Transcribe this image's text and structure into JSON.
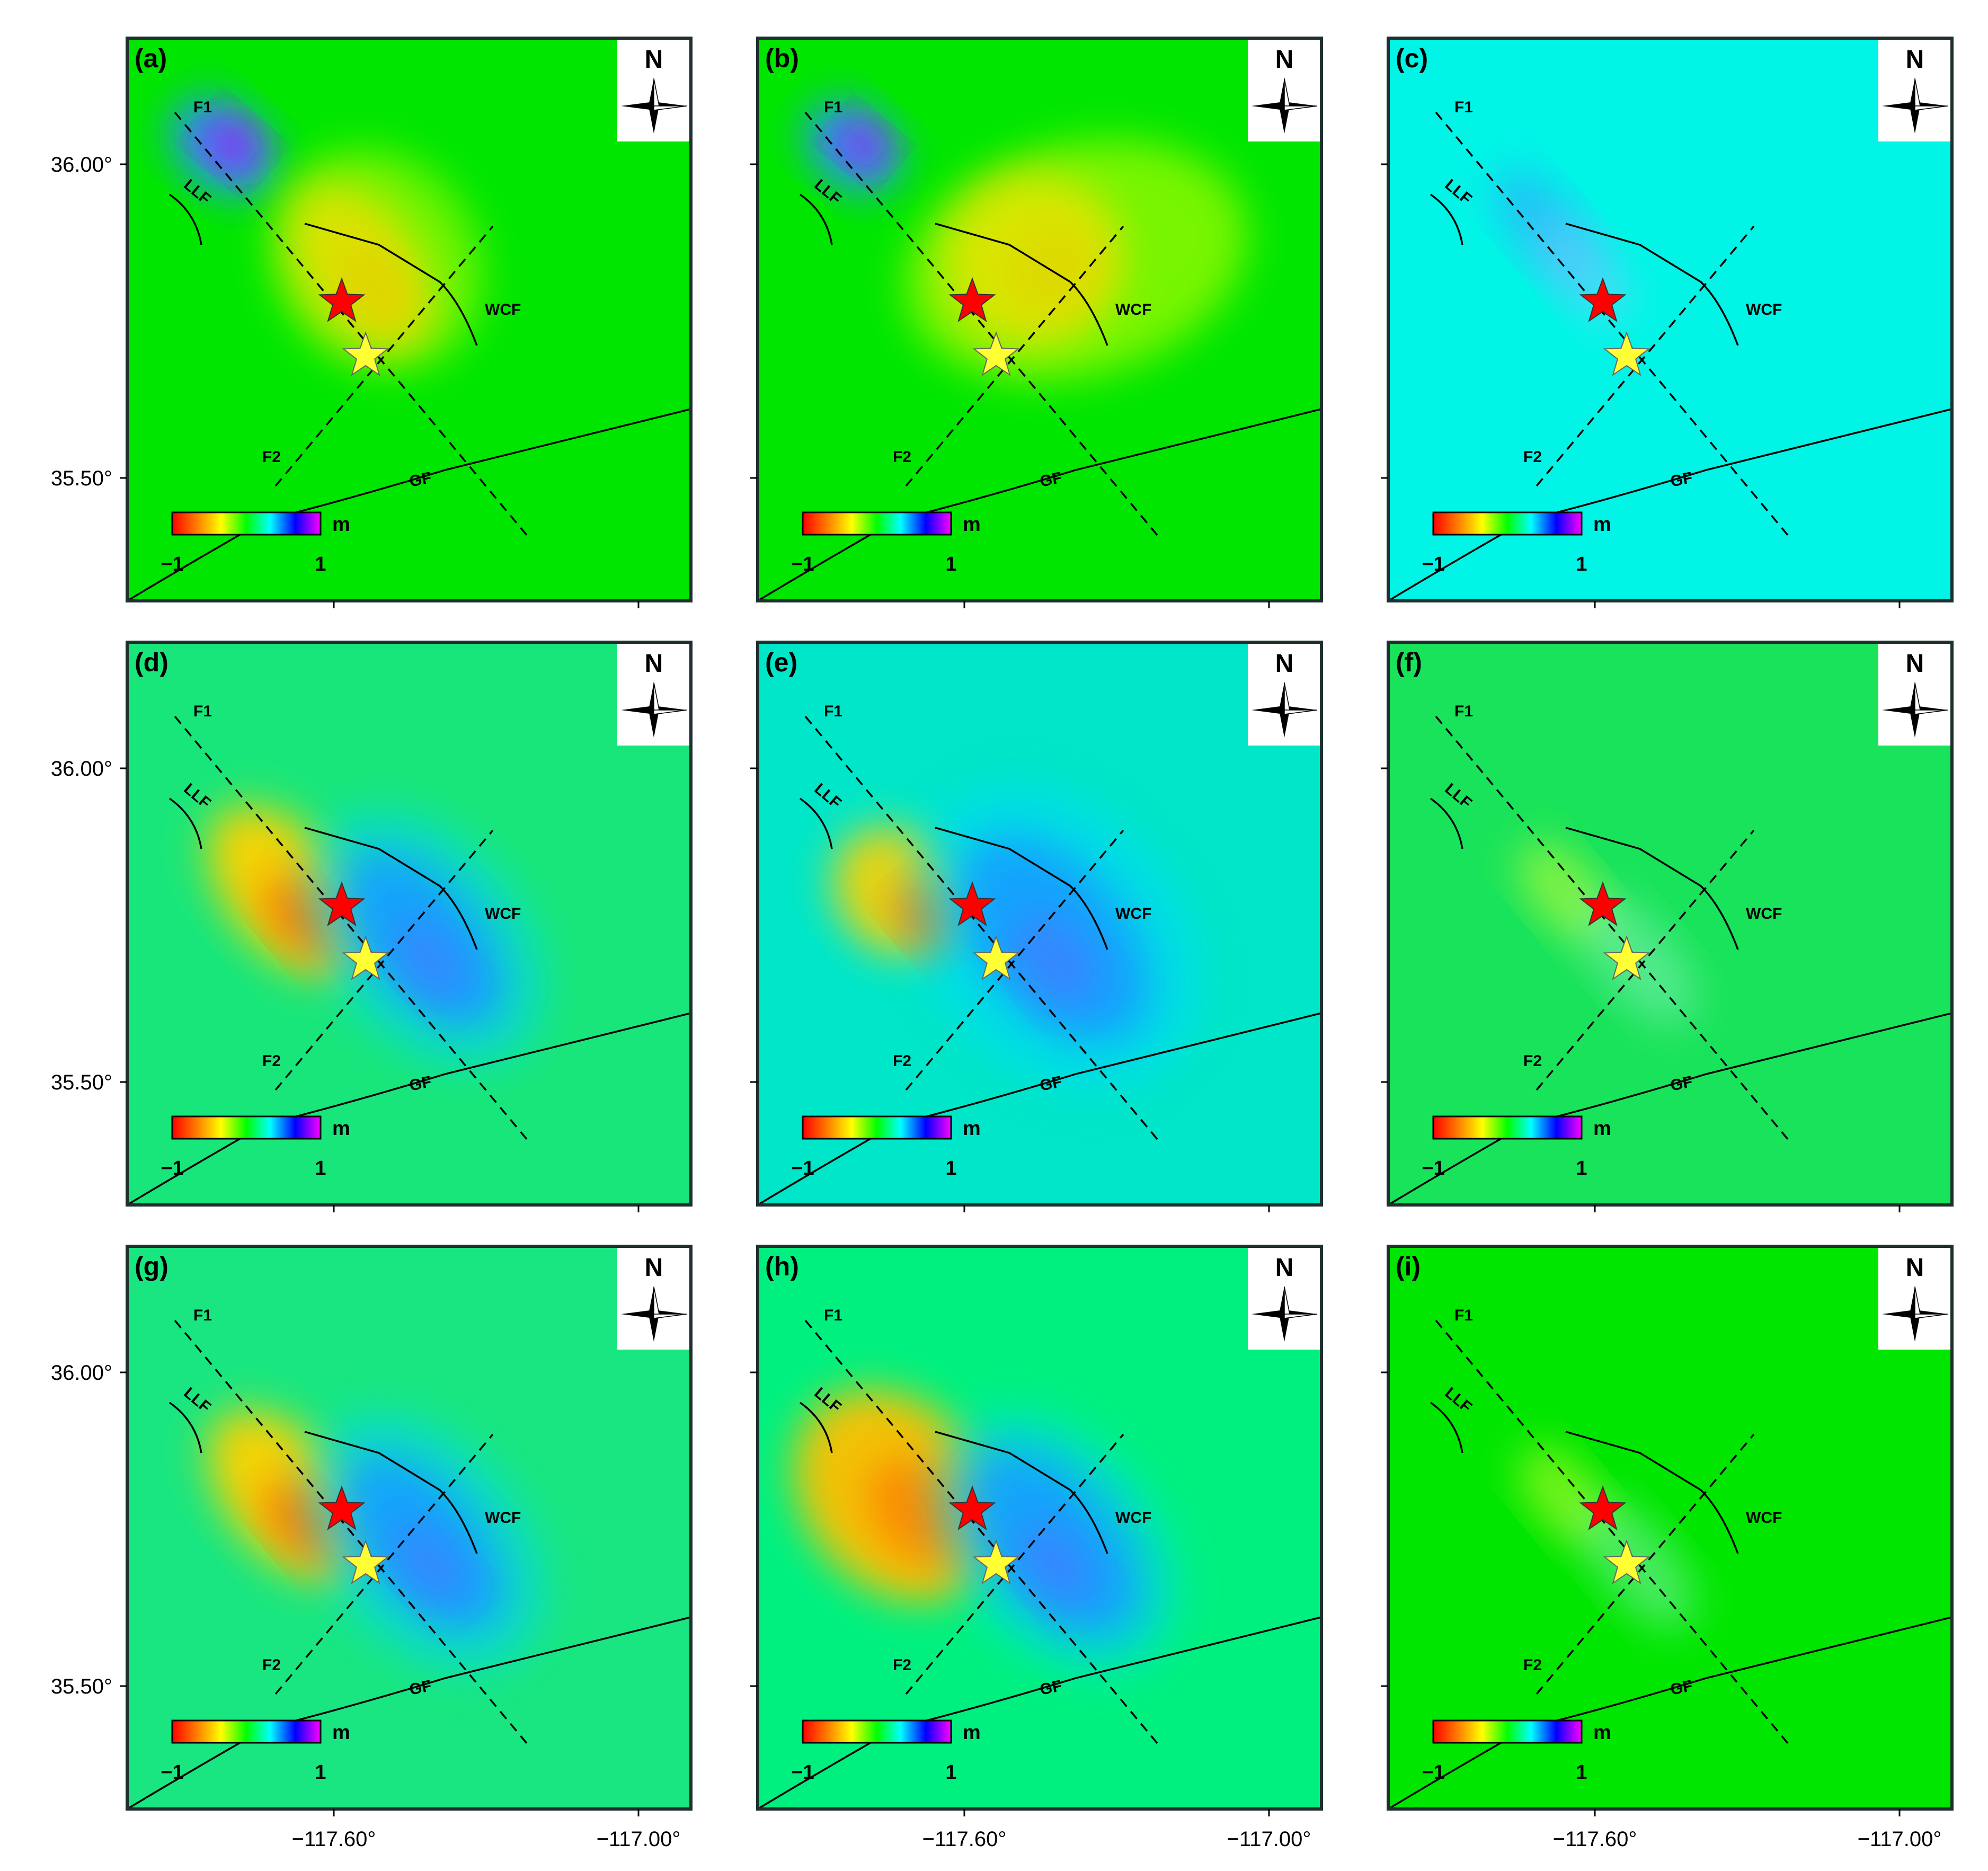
{
  "figure": {
    "panels": [
      {
        "label": "(a)",
        "background": "#00e600",
        "scheme": "mixed_blue_w_orange_e"
      },
      {
        "label": "(b)",
        "background": "#00e600",
        "scheme": "mixed_blue_w_orange_e_wide"
      },
      {
        "label": "(c)",
        "background": "#00f5e6",
        "scheme": "faint_blue"
      },
      {
        "label": "(d)",
        "background": "#19e67a",
        "scheme": "orange_w_blue_e"
      },
      {
        "label": "(e)",
        "background": "#00e6c8",
        "scheme": "orange_w_blue_e_strong"
      },
      {
        "label": "(f)",
        "background": "#19e35a",
        "scheme": "faint_mixed"
      },
      {
        "label": "(g)",
        "background": "#19e680",
        "scheme": "orange_w_blue_e"
      },
      {
        "label": "(h)",
        "background": "#00f080",
        "scheme": "orange_w_blue_e_wide"
      },
      {
        "label": "(i)",
        "background": "#00e600",
        "scheme": "faint_mixed"
      }
    ],
    "fault_labels": {
      "f1": "F1",
      "f2": "F2",
      "llf": "LLF",
      "wcf": "WCF",
      "gf": "GF"
    },
    "north_label": "N",
    "colorbar": {
      "unit": "m",
      "min_label": "−1",
      "max_label": "1",
      "colors": [
        "#ff0000",
        "#ff8800",
        "#ffff00",
        "#00ff00",
        "#00ffff",
        "#0000ff",
        "#ff00ff"
      ]
    },
    "y_ticks": [
      "36.00°",
      "35.50°"
    ],
    "x_ticks": [
      "−117.60°",
      "−117.00°"
    ],
    "stars": [
      {
        "color": "#ff0000"
      },
      {
        "color": "#ffff33"
      }
    ]
  }
}
